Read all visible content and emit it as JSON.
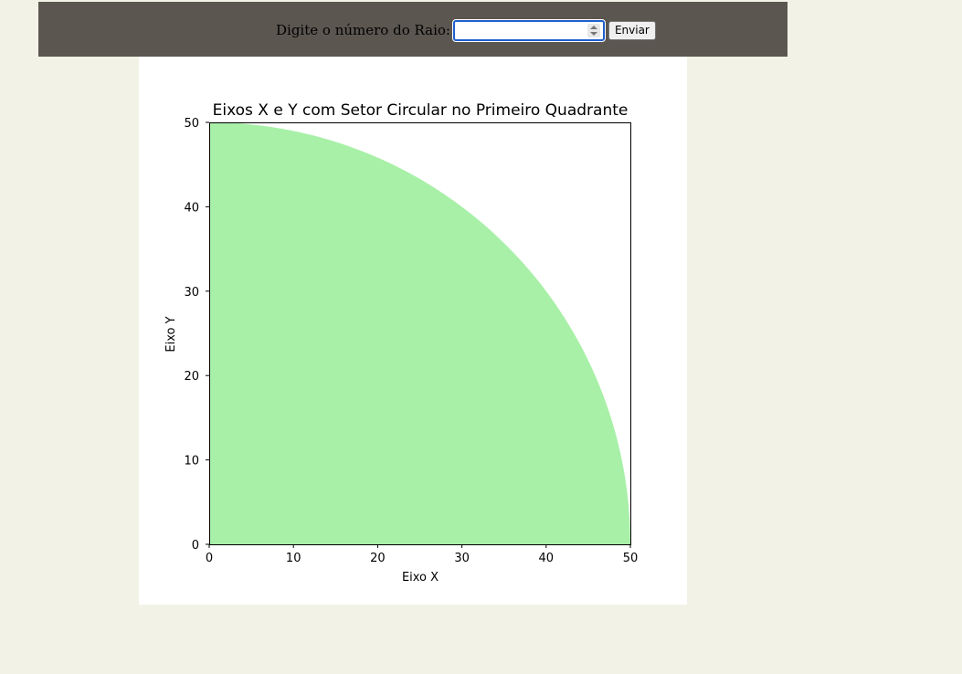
{
  "form": {
    "label": "Digite o número do Raio:",
    "input_value": "",
    "submit_label": "Enviar"
  },
  "chart_data": {
    "type": "area",
    "title": "Eixos X e Y com Setor Circular no Primeiro Quadrante",
    "xlabel": "Eixo X",
    "ylabel": "Eixo Y",
    "xlim": [
      0,
      50
    ],
    "ylim": [
      0,
      50
    ],
    "xticks": [
      0,
      10,
      20,
      30,
      40,
      50
    ],
    "yticks": [
      0,
      10,
      20,
      30,
      40,
      50
    ],
    "grid": false,
    "series": [
      {
        "name": "Setor Circular",
        "shape": "quarter-circle",
        "center": [
          0,
          0
        ],
        "radius": 50,
        "angle_start_deg": 0,
        "angle_end_deg": 90,
        "color": "#a8f0a8"
      }
    ]
  }
}
